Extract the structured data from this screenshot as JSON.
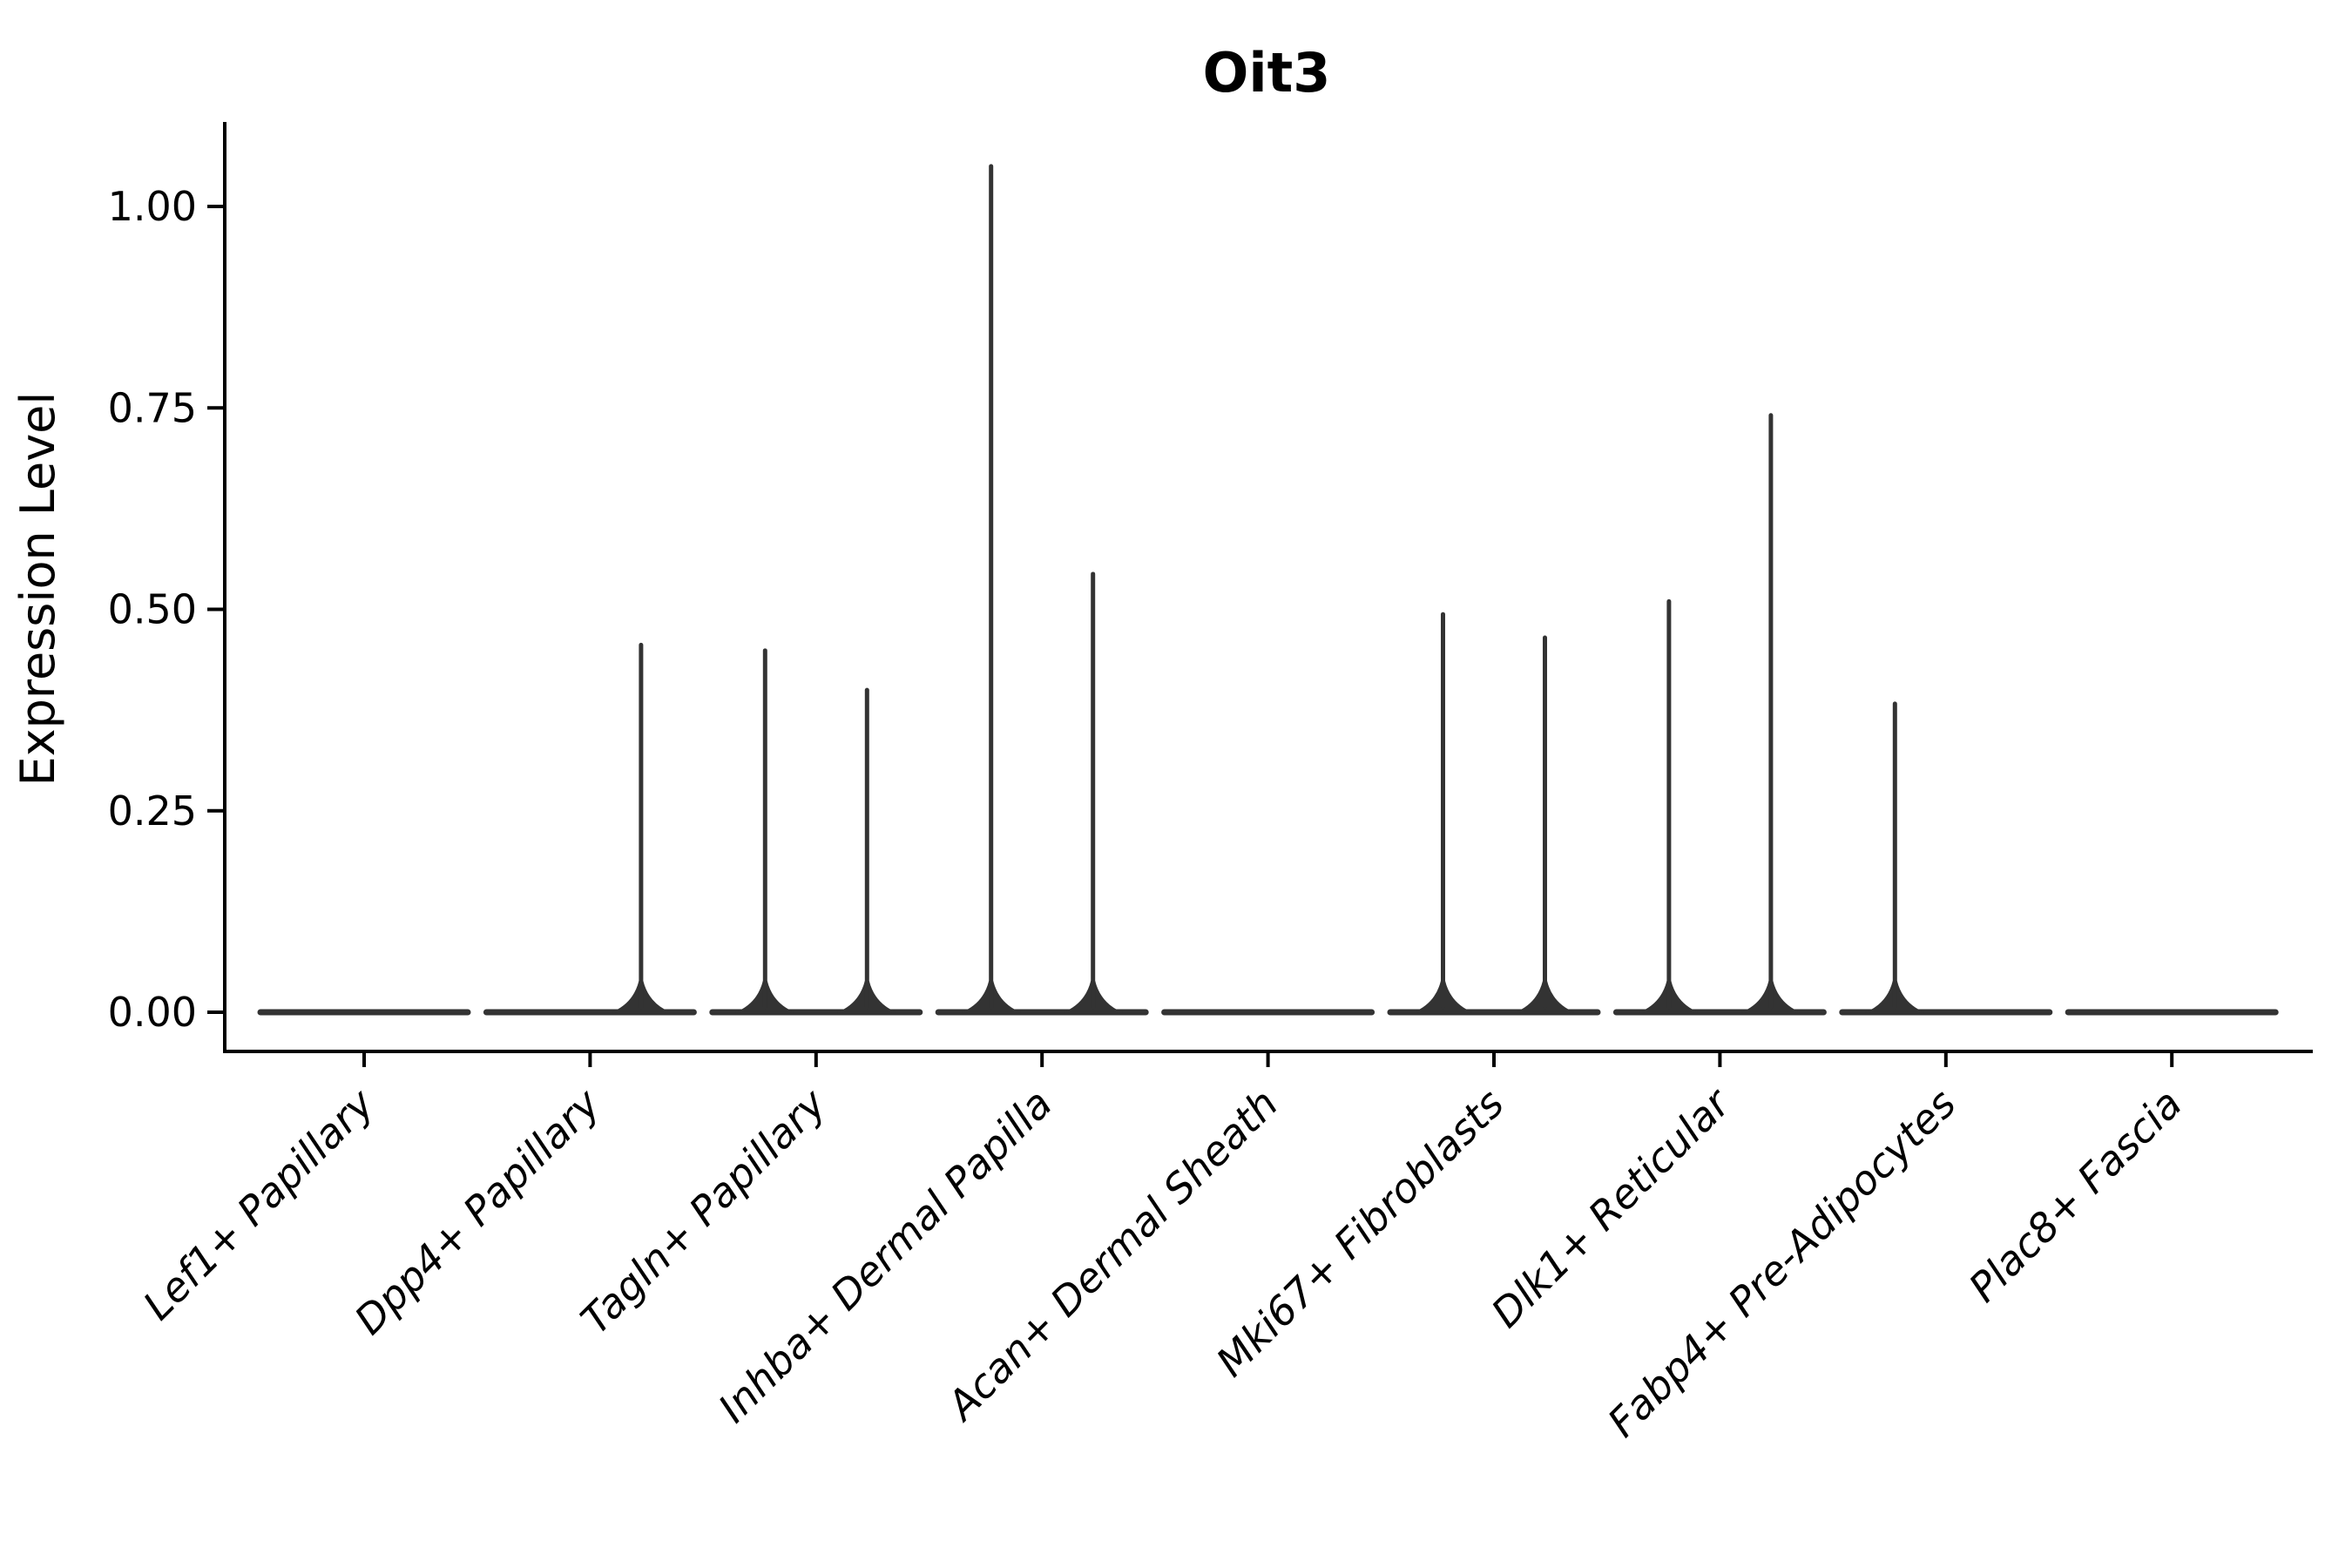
{
  "figure": {
    "background_color": "#ffffff",
    "axis_color": "#000000",
    "text_color": "#000000"
  },
  "chart_data": {
    "type": "violin",
    "title": "Oit3",
    "xlabel": "",
    "ylabel": "Expression Level",
    "grid": false,
    "legend": "none",
    "violin_color": "#333333",
    "ylim": [
      -0.05,
      1.1
    ],
    "yticks": [
      {
        "value": 0.0,
        "label": "0.00"
      },
      {
        "value": 0.25,
        "label": "0.25"
      },
      {
        "value": 0.5,
        "label": "0.50"
      },
      {
        "value": 0.75,
        "label": "0.75"
      },
      {
        "value": 1.0,
        "label": "1.00"
      }
    ],
    "categories": [
      "Lef1+ Papillary",
      "Dpp4+ Papillary",
      "Tagln+ Papillary",
      "Inhba+ Dermal Papilla",
      "Acan+ Dermal Sheath",
      "Mki67+ Fibroblasts",
      "Dlk1+ Reticular",
      "Fabp4+ Pre-Adipocytes",
      "Plac8+ Fascia"
    ],
    "series": [
      {
        "category": "Lef1+ Papillary",
        "baseline": 0,
        "spikes": []
      },
      {
        "category": "Dpp4+ Papillary",
        "baseline": 0,
        "spikes": [
          {
            "side": "right",
            "value": 0.458
          }
        ]
      },
      {
        "category": "Tagln+ Papillary",
        "baseline": 0,
        "spikes": [
          {
            "side": "left",
            "value": 0.451
          },
          {
            "side": "right",
            "value": 0.402
          }
        ]
      },
      {
        "category": "Inhba+ Dermal Papilla",
        "baseline": 0,
        "spikes": [
          {
            "side": "left",
            "value": 1.052
          },
          {
            "side": "right",
            "value": 0.546
          }
        ]
      },
      {
        "category": "Acan+ Dermal Sheath",
        "baseline": 0,
        "spikes": []
      },
      {
        "category": "Mki67+ Fibroblasts",
        "baseline": 0,
        "spikes": [
          {
            "side": "left",
            "value": 0.496
          },
          {
            "side": "right",
            "value": 0.467
          }
        ]
      },
      {
        "category": "Dlk1+ Reticular",
        "baseline": 0,
        "spikes": [
          {
            "side": "left",
            "value": 0.512
          },
          {
            "side": "right",
            "value": 0.743
          }
        ]
      },
      {
        "category": "Fabp4+ Pre-Adipocytes",
        "baseline": 0,
        "spikes": [
          {
            "side": "left",
            "value": 0.385
          }
        ]
      },
      {
        "category": "Plac8+ Fascia",
        "baseline": 0,
        "spikes": []
      }
    ]
  }
}
